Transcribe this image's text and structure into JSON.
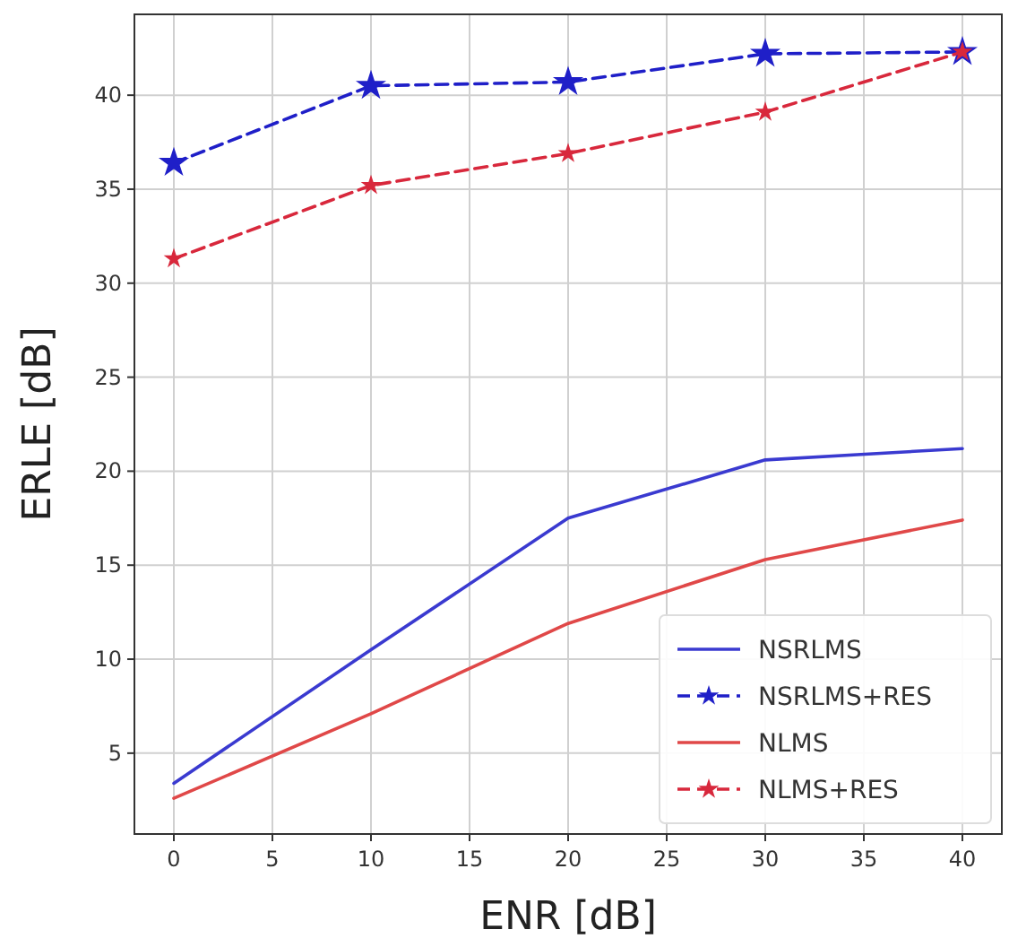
{
  "chart_data": {
    "type": "line",
    "xlabel": "ENR [dB]",
    "ylabel": "ERLE [dB]",
    "x": [
      0,
      10,
      20,
      30,
      40
    ],
    "xlim": [
      -2,
      42
    ],
    "xticks": [
      0,
      5,
      10,
      15,
      20,
      25,
      30,
      35,
      40
    ],
    "ylim": [
      0.7,
      44.3
    ],
    "yticks": [
      5,
      10,
      15,
      20,
      25,
      30,
      35,
      40
    ],
    "grid": true,
    "legend": "bottom right",
    "series": [
      {
        "name": "NSRLMS",
        "color": "#3a3ad0",
        "values": [
          3.4,
          10.5,
          17.5,
          20.6,
          21.2
        ],
        "line_style": "solid",
        "marker": "none"
      },
      {
        "name": "NSRLMS+RES",
        "color": "#1f1fc8",
        "values": [
          36.4,
          40.5,
          40.7,
          42.2,
          42.3
        ],
        "line_style": "dashed",
        "marker": "star"
      },
      {
        "name": "NLMS",
        "color": "#e04848",
        "values": [
          2.6,
          7.1,
          11.9,
          15.3,
          17.4
        ],
        "line_style": "solid",
        "marker": "none"
      },
      {
        "name": "NLMS+RES",
        "color": "#d8283c",
        "values": [
          31.3,
          35.2,
          36.9,
          39.1,
          42.3
        ],
        "line_style": "dashed",
        "marker": "star"
      }
    ]
  }
}
